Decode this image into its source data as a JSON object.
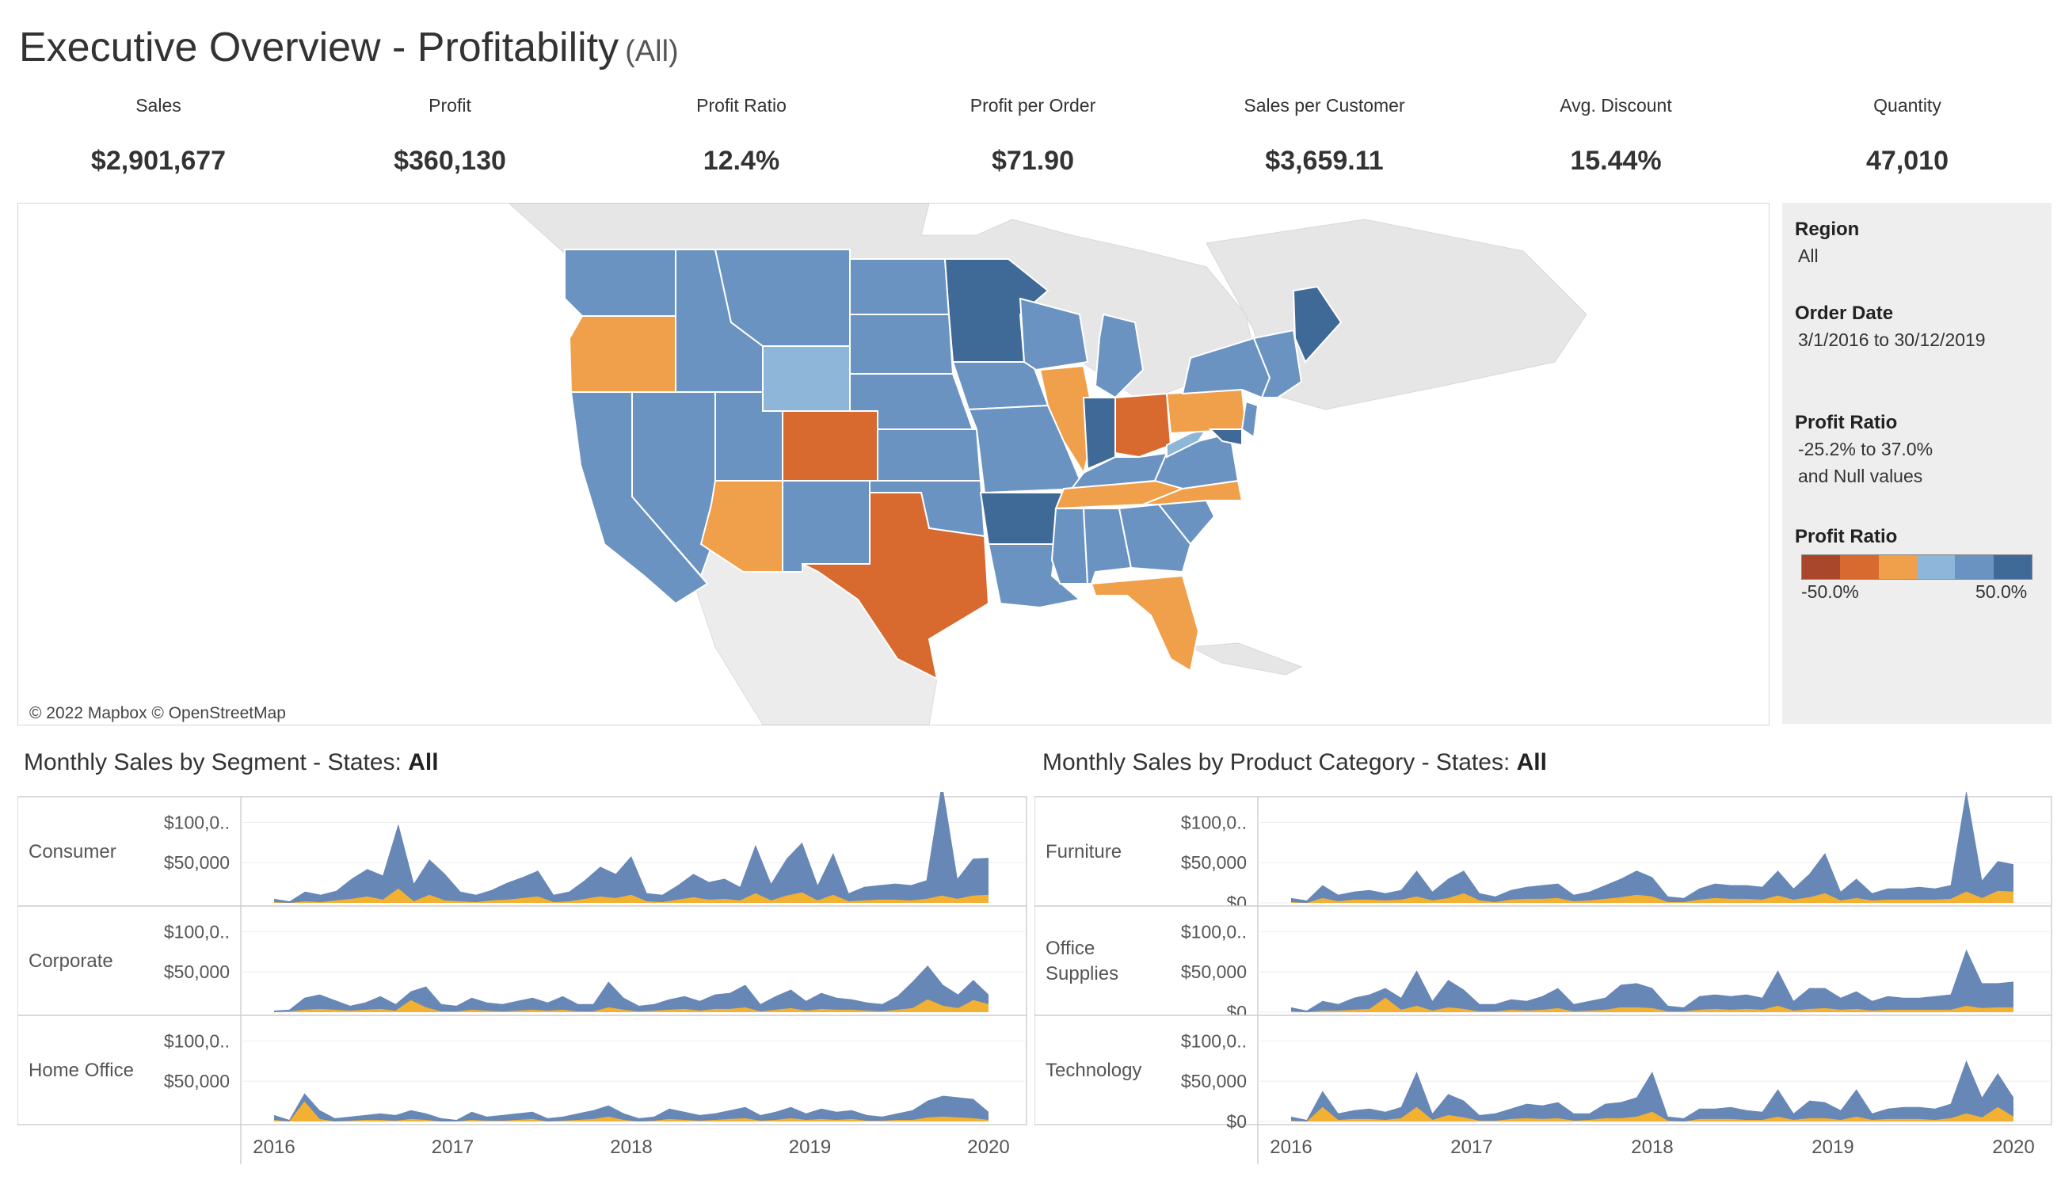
{
  "header": {
    "title": "Executive Overview - Profitability",
    "subtitle": "(All)"
  },
  "kpis": [
    {
      "label": "Sales",
      "value": "$2,901,677"
    },
    {
      "label": "Profit",
      "value": "$360,130"
    },
    {
      "label": "Profit Ratio",
      "value": "12.4%"
    },
    {
      "label": "Profit per Order",
      "value": "$71.90"
    },
    {
      "label": "Sales per Customer",
      "value": "$3,659.11"
    },
    {
      "label": "Avg. Discount",
      "value": "15.44%"
    },
    {
      "label": "Quantity",
      "value": "47,010"
    }
  ],
  "map": {
    "credit": "© 2022 Mapbox © OpenStreetMap"
  },
  "filters": {
    "region_label": "Region",
    "region_value": "All",
    "order_date_label": "Order Date",
    "order_date_value": "3/1/2016 to 30/12/2019",
    "profit_ratio_label": "Profit Ratio",
    "profit_ratio_range": "-25.2% to 37.0%",
    "profit_ratio_null": "and Null values",
    "legend_label": "Profit Ratio",
    "legend_min": "-50.0%",
    "legend_max": "50.0%",
    "legend_colors": [
      "#a9472d",
      "#d8692f",
      "#f0a04b",
      "#8db6d8",
      "#6a93c1",
      "#3f6997"
    ]
  },
  "colors": {
    "sales_area": "#6787b7",
    "profit_area": "#f2b132"
  },
  "chart_data": [
    {
      "type": "area",
      "title": "Monthly Sales by Segment - States: ",
      "title_bold": "All",
      "x_ticks": [
        "2016",
        "2017",
        "2018",
        "2019",
        "2020"
      ],
      "xlim": [
        "2016-01",
        "2020-01"
      ],
      "y_ticks": [
        "$100,0..",
        "$50,000"
      ],
      "ylim": [
        0,
        120000
      ],
      "panels": [
        {
          "name": "Consumer",
          "sales": [
            5000,
            2000,
            14000,
            10000,
            15000,
            30000,
            42000,
            34000,
            98000,
            24000,
            54000,
            36000,
            14000,
            10000,
            16000,
            25000,
            32000,
            40000,
            10000,
            14000,
            28000,
            45000,
            36000,
            58000,
            12000,
            10000,
            22000,
            36000,
            26000,
            30000,
            20000,
            72000,
            24000,
            55000,
            75000,
            22000,
            62000,
            12000,
            20000,
            22000,
            24000,
            22000,
            28000,
            150000,
            30000,
            55000,
            56000
          ],
          "profit": [
            1000,
            0,
            2000,
            1000,
            3000,
            5000,
            8000,
            4000,
            18000,
            2000,
            10000,
            3000,
            2000,
            1000,
            3000,
            4000,
            6000,
            8000,
            1000,
            2000,
            5000,
            8000,
            6000,
            10000,
            2000,
            1000,
            4000,
            7000,
            4000,
            5000,
            3000,
            12000,
            3000,
            9000,
            13000,
            3000,
            10000,
            2000,
            3000,
            4000,
            4000,
            3000,
            5000,
            9000,
            5000,
            9000,
            10000
          ]
        },
        {
          "name": "Corporate",
          "sales": [
            2000,
            3000,
            18000,
            22000,
            15000,
            8000,
            12000,
            20000,
            10000,
            26000,
            32000,
            10000,
            8000,
            18000,
            12000,
            10000,
            14000,
            18000,
            12000,
            20000,
            10000,
            10000,
            38000,
            18000,
            8000,
            10000,
            16000,
            20000,
            14000,
            22000,
            24000,
            34000,
            10000,
            20000,
            28000,
            14000,
            24000,
            18000,
            16000,
            12000,
            10000,
            20000,
            38000,
            58000,
            34000,
            22000,
            40000,
            22000
          ],
          "profit": [
            0,
            1000,
            3000,
            4000,
            3000,
            2000,
            3000,
            4000,
            2000,
            15000,
            6000,
            1000,
            1000,
            3000,
            2000,
            1000,
            2000,
            3000,
            2000,
            3000,
            1000,
            1000,
            6000,
            3000,
            1000,
            2000,
            3000,
            4000,
            2000,
            4000,
            4000,
            6000,
            1000,
            3000,
            5000,
            2000,
            4000,
            3000,
            3000,
            2000,
            1000,
            3000,
            5000,
            16000,
            8000,
            5000,
            15000,
            10000
          ]
        },
        {
          "name": "Home Office",
          "sales": [
            8000,
            2000,
            35000,
            14000,
            4000,
            6000,
            8000,
            10000,
            8000,
            14000,
            10000,
            4000,
            2000,
            12000,
            6000,
            8000,
            10000,
            12000,
            4000,
            6000,
            10000,
            14000,
            20000,
            10000,
            4000,
            6000,
            16000,
            12000,
            8000,
            10000,
            14000,
            18000,
            8000,
            12000,
            18000,
            10000,
            16000,
            12000,
            14000,
            8000,
            6000,
            10000,
            14000,
            26000,
            32000,
            30000,
            28000,
            12000
          ],
          "profit": [
            2000,
            0,
            25000,
            3000,
            0,
            1000,
            2000,
            2000,
            1000,
            3000,
            2000,
            0,
            0,
            2000,
            1000,
            1000,
            2000,
            3000,
            0,
            1000,
            2000,
            3000,
            6000,
            2000,
            0,
            1000,
            3000,
            2000,
            1000,
            2000,
            3000,
            4000,
            1000,
            2000,
            4000,
            2000,
            3000,
            2000,
            3000,
            1000,
            1000,
            2000,
            2000,
            5000,
            6000,
            5000,
            4000,
            2000
          ]
        }
      ]
    },
    {
      "type": "area",
      "title": "Monthly Sales by Product Category - States: ",
      "title_bold": "All",
      "x_ticks": [
        "2016",
        "2017",
        "2018",
        "2019",
        "2020"
      ],
      "xlim": [
        "2016-01",
        "2020-01"
      ],
      "y_ticks": [
        "$100,0..",
        "$50,000",
        "$0"
      ],
      "ylim": [
        0,
        120000
      ],
      "panels": [
        {
          "name": "Furniture",
          "sales": [
            6000,
            3000,
            22000,
            10000,
            14000,
            16000,
            12000,
            16000,
            40000,
            14000,
            30000,
            40000,
            12000,
            8000,
            16000,
            20000,
            22000,
            24000,
            10000,
            14000,
            22000,
            30000,
            40000,
            32000,
            8000,
            6000,
            18000,
            24000,
            22000,
            22000,
            20000,
            40000,
            18000,
            36000,
            62000,
            14000,
            30000,
            12000,
            18000,
            18000,
            20000,
            18000,
            22000,
            140000,
            28000,
            52000,
            48000
          ],
          "profit": [
            1000,
            0,
            6000,
            2000,
            4000,
            4000,
            3000,
            4000,
            8000,
            3000,
            6000,
            12000,
            3000,
            1000,
            4000,
            5000,
            5000,
            6000,
            2000,
            3000,
            5000,
            7000,
            10000,
            8000,
            1000,
            1000,
            4000,
            6000,
            5000,
            5000,
            4000,
            9000,
            4000,
            7000,
            12000,
            3000,
            6000,
            3000,
            4000,
            4000,
            4000,
            4000,
            5000,
            14000,
            6000,
            15000,
            14000
          ]
        },
        {
          "name": "Office\nSupplies",
          "sales": [
            6000,
            2000,
            14000,
            10000,
            18000,
            22000,
            30000,
            18000,
            52000,
            14000,
            40000,
            28000,
            10000,
            10000,
            16000,
            14000,
            20000,
            30000,
            10000,
            14000,
            18000,
            34000,
            36000,
            30000,
            8000,
            6000,
            20000,
            22000,
            20000,
            22000,
            18000,
            52000,
            14000,
            30000,
            30000,
            18000,
            26000,
            14000,
            20000,
            18000,
            18000,
            20000,
            22000,
            78000,
            36000,
            36000,
            38000
          ],
          "profit": [
            1000,
            0,
            2000,
            2000,
            3000,
            4000,
            18000,
            3000,
            8000,
            2000,
            6000,
            4000,
            1000,
            1000,
            3000,
            2000,
            3000,
            5000,
            1000,
            2000,
            3000,
            6000,
            6000,
            5000,
            1000,
            1000,
            3000,
            4000,
            3000,
            4000,
            3000,
            8000,
            2000,
            4000,
            5000,
            3000,
            4000,
            2000,
            3000,
            3000,
            3000,
            3000,
            3000,
            8000,
            5000,
            6000,
            6000
          ]
        },
        {
          "name": "Technology",
          "sales": [
            6000,
            2000,
            38000,
            10000,
            14000,
            16000,
            12000,
            18000,
            62000,
            10000,
            34000,
            26000,
            8000,
            10000,
            16000,
            22000,
            20000,
            24000,
            10000,
            10000,
            22000,
            24000,
            30000,
            62000,
            6000,
            4000,
            16000,
            16000,
            18000,
            14000,
            12000,
            40000,
            10000,
            26000,
            24000,
            14000,
            40000,
            10000,
            16000,
            18000,
            18000,
            16000,
            22000,
            76000,
            30000,
            60000,
            30000
          ],
          "profit": [
            1000,
            0,
            18000,
            2000,
            3000,
            3000,
            2000,
            4000,
            18000,
            2000,
            8000,
            5000,
            1000,
            1000,
            3000,
            4000,
            3000,
            4000,
            1000,
            2000,
            4000,
            4000,
            6000,
            12000,
            1000,
            0,
            3000,
            3000,
            3000,
            2000,
            2000,
            6000,
            2000,
            4000,
            4000,
            2000,
            6000,
            2000,
            3000,
            3000,
            3000,
            2000,
            4000,
            10000,
            5000,
            18000,
            6000
          ]
        }
      ]
    }
  ]
}
